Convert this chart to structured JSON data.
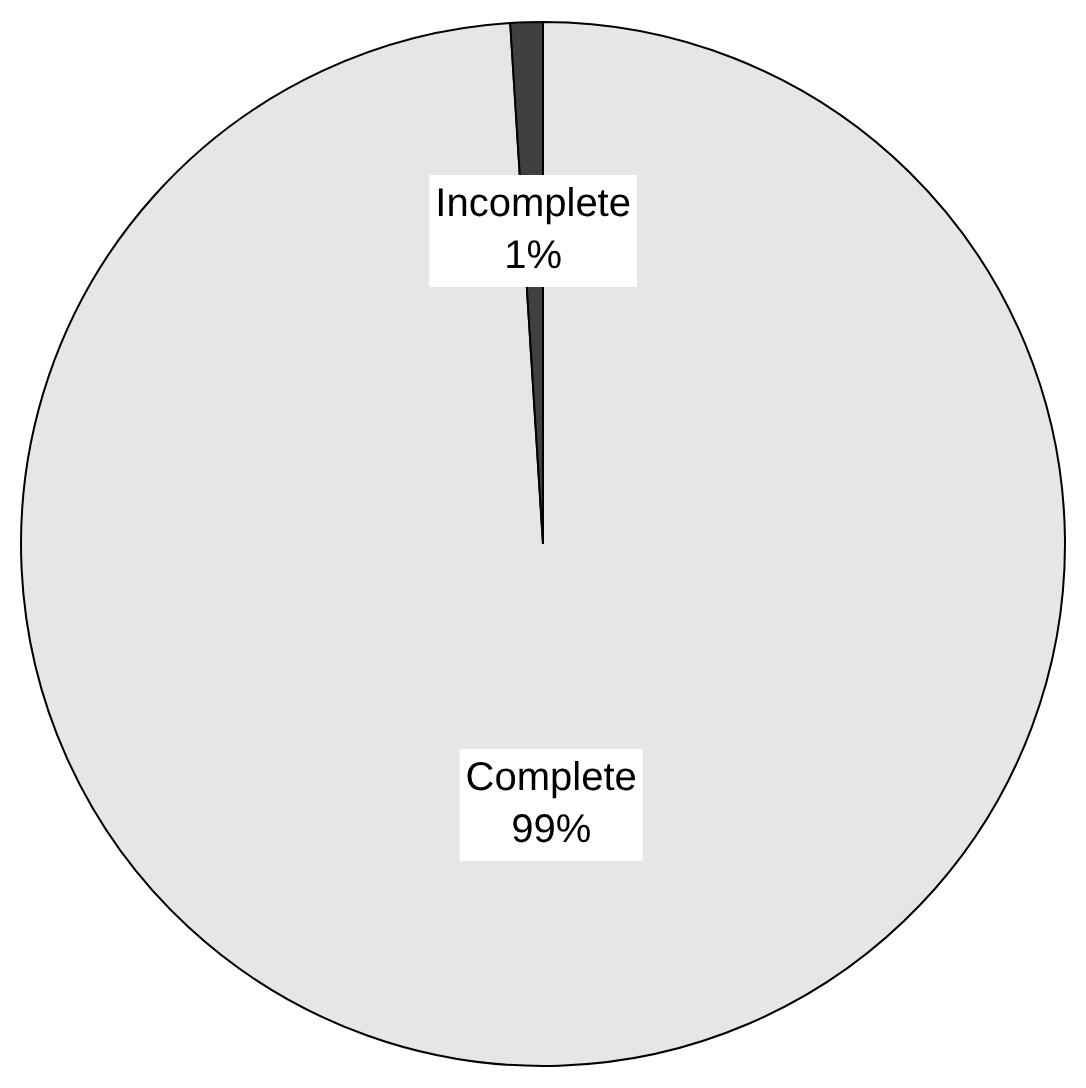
{
  "chart_data": {
    "type": "pie",
    "categories": [
      "Complete",
      "Incomplete"
    ],
    "values": [
      99,
      1
    ],
    "colors": [
      "#e6e6e6",
      "#404040"
    ],
    "value_labels": [
      "99%",
      "1%"
    ]
  }
}
